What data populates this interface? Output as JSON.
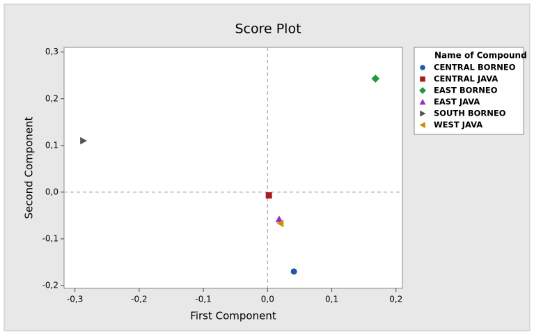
{
  "chart_data": {
    "type": "scatter",
    "title": "Score Plot",
    "x_label": "First Component",
    "y_label": "Second Component",
    "legend_title": "Name of Compound",
    "legend": "right",
    "xlim": [
      -0.317,
      0.21
    ],
    "ylim": [
      -0.206,
      0.31
    ],
    "xticks": [
      {
        "value": -0.3,
        "label": "-0,3"
      },
      {
        "value": -0.2,
        "label": "-0,2"
      },
      {
        "value": -0.1,
        "label": "-0,1"
      },
      {
        "value": 0,
        "label": "0,0"
      },
      {
        "value": 0.1,
        "label": "0,1"
      },
      {
        "value": 0.2,
        "label": "0,2"
      }
    ],
    "yticks": [
      {
        "value": -0.2,
        "label": "-0,2"
      },
      {
        "value": -0.1,
        "label": "-0,1"
      },
      {
        "value": 0,
        "label": "0,0"
      },
      {
        "value": 0.1,
        "label": "0,1"
      },
      {
        "value": 0.2,
        "label": "0,2"
      },
      {
        "value": 0.3,
        "label": "0,3"
      }
    ],
    "x_reference": 0,
    "y_reference": 0,
    "series": [
      {
        "name": "CENTRAL BORNEO",
        "color": "#1f5aa6",
        "marker": "circle",
        "x": [
          0.041
        ],
        "values": [
          -0.17
        ]
      },
      {
        "name": "CENTRAL JAVA",
        "color": "#a51d1d",
        "marker": "square",
        "x": [
          0.002
        ],
        "values": [
          -0.007
        ]
      },
      {
        "name": "EAST BORNEO",
        "color": "#1e9a3a",
        "marker": "diamond",
        "x": [
          0.168
        ],
        "values": [
          0.243
        ]
      },
      {
        "name": "EAST JAVA",
        "color": "#9b30c0",
        "marker": "triangle-up",
        "x": [
          0.018
        ],
        "values": [
          -0.058
        ]
      },
      {
        "name": "SOUTH BORNEO",
        "color": "#555555",
        "marker": "triangle-right",
        "x": [
          -0.287
        ],
        "values": [
          0.11
        ]
      },
      {
        "name": "WEST JAVA",
        "color": "#d48a0a",
        "marker": "triangle-left",
        "x": [
          0.02
        ],
        "values": [
          -0.067
        ]
      }
    ]
  }
}
